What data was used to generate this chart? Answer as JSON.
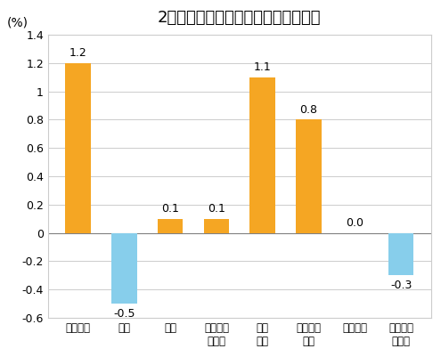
{
  "title": "2月份居民消费价格分类别环比涨跌幅",
  "ylabel": "(%)",
  "categories": [
    "食品烟酒",
    "衣着",
    "居住",
    "生活用品\n及服务",
    "交通\n通信",
    "教育文化\n娱乐",
    "医疗保健",
    "其他用品\n及服务"
  ],
  "values": [
    1.2,
    -0.5,
    0.1,
    0.1,
    1.1,
    0.8,
    0.0,
    -0.3
  ],
  "bar_colors_positive": "#F5A623",
  "bar_colors_negative": "#87CEEB",
  "bar_color_zero": "#F5A623",
  "ylim": [
    -0.6,
    1.4
  ],
  "yticks": [
    -0.6,
    -0.4,
    -0.2,
    0.0,
    0.2,
    0.4,
    0.6,
    0.8,
    1.0,
    1.2,
    1.4
  ],
  "background_color": "#ffffff",
  "label_fontsize": 9,
  "title_fontsize": 13,
  "ylabel_fontsize": 10
}
